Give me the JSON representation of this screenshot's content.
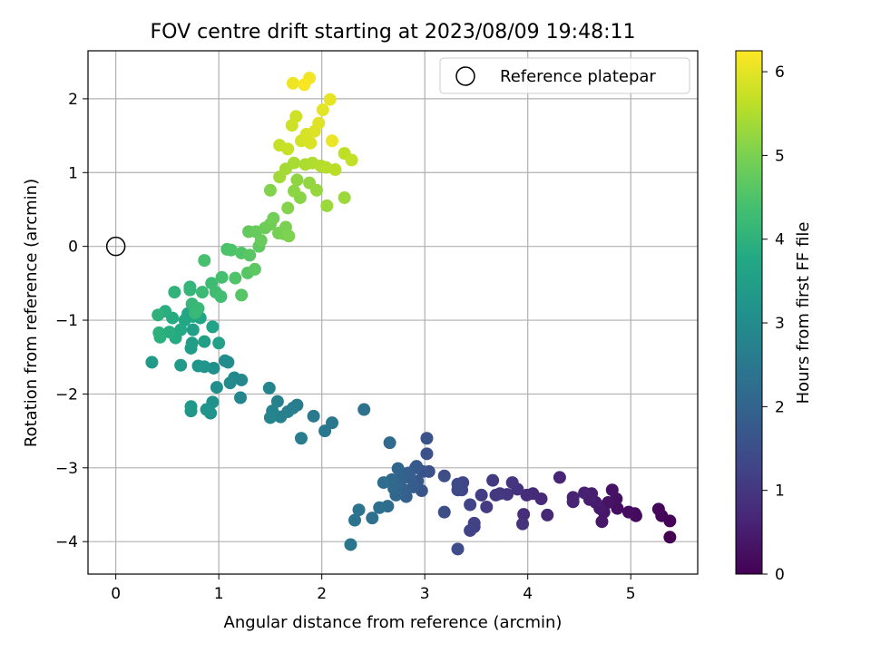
{
  "chart_data": {
    "type": "scatter",
    "title": "FOV centre drift starting at 2023/08/09 19:48:11",
    "xlabel": "Angular distance from reference (arcmin)",
    "ylabel": "Rotation from reference (arcmin)",
    "xlim": [
      -0.27,
      5.65
    ],
    "ylim": [
      -4.44,
      2.65
    ],
    "x_ticks": [
      "0",
      "1",
      "2",
      "3",
      "4",
      "5"
    ],
    "y_ticks": [
      "2",
      "1",
      "0",
      "−1",
      "−2",
      "−3",
      "−4"
    ],
    "grid": true,
    "legend": {
      "placement": "top-right",
      "entries": [
        "Reference platepar"
      ]
    },
    "colorbar": {
      "label": "Hours from first FF file",
      "range": [
        0,
        6.25
      ],
      "ticks": [
        "0",
        "1",
        "2",
        "3",
        "4",
        "5",
        "6"
      ],
      "colormap": "viridis"
    },
    "reference_point": {
      "x": 0,
      "y": 0,
      "name": "Reference platepar"
    },
    "series": [
      {
        "color_by": "hours",
        "points": [
          [
            5.38,
            -3.94,
            0.0
          ],
          [
            5.38,
            -3.72,
            0.03
          ],
          [
            5.3,
            -3.65,
            0.07
          ],
          [
            5.27,
            -3.56,
            0.1
          ],
          [
            5.05,
            -3.65,
            0.13
          ],
          [
            5.04,
            -3.62,
            0.17
          ],
          [
            4.98,
            -3.6,
            0.2
          ],
          [
            4.87,
            -3.55,
            0.24
          ],
          [
            4.86,
            -3.42,
            0.27
          ],
          [
            4.82,
            -3.3,
            0.3
          ],
          [
            4.78,
            -3.47,
            0.33
          ],
          [
            4.74,
            -3.6,
            0.37
          ],
          [
            4.72,
            -3.73,
            0.4
          ],
          [
            4.7,
            -3.55,
            0.43
          ],
          [
            4.66,
            -3.47,
            0.47
          ],
          [
            4.62,
            -3.35,
            0.5
          ],
          [
            4.6,
            -3.43,
            0.54
          ],
          [
            4.55,
            -3.34,
            0.57
          ],
          [
            4.44,
            -3.4,
            0.6
          ],
          [
            4.44,
            -3.46,
            0.63
          ],
          [
            4.31,
            -3.13,
            0.67
          ],
          [
            4.19,
            -3.64,
            0.7
          ],
          [
            4.13,
            -3.42,
            0.73
          ],
          [
            4.05,
            -3.35,
            0.77
          ],
          [
            3.99,
            -3.37,
            0.8
          ],
          [
            3.96,
            -3.63,
            0.83
          ],
          [
            3.95,
            -3.76,
            0.87
          ],
          [
            3.9,
            -3.29,
            0.9
          ],
          [
            3.85,
            -3.2,
            0.93
          ],
          [
            3.8,
            -3.36,
            0.97
          ],
          [
            3.73,
            -3.35,
            1.0
          ],
          [
            3.69,
            -3.37,
            1.03
          ],
          [
            3.66,
            -3.17,
            1.07
          ],
          [
            3.6,
            -3.53,
            1.1
          ],
          [
            3.55,
            -3.37,
            1.13
          ],
          [
            3.48,
            -3.8,
            1.17
          ],
          [
            3.48,
            -3.75,
            1.2
          ],
          [
            3.44,
            -3.85,
            1.23
          ],
          [
            3.44,
            -3.5,
            1.27
          ],
          [
            3.37,
            -3.2,
            1.3
          ],
          [
            3.36,
            -3.3,
            1.33
          ],
          [
            3.32,
            -3.3,
            1.37
          ],
          [
            3.32,
            -3.22,
            1.4
          ],
          [
            3.32,
            -4.1,
            1.43
          ],
          [
            3.19,
            -3.11,
            1.47
          ],
          [
            3.19,
            -3.6,
            1.5
          ],
          [
            3.04,
            -3.05,
            1.53
          ],
          [
            3.02,
            -2.81,
            1.57
          ],
          [
            3.02,
            -2.6,
            1.6
          ],
          [
            2.98,
            -3.05,
            1.63
          ],
          [
            2.97,
            -3.31,
            1.67
          ],
          [
            2.93,
            -3.18,
            1.7
          ],
          [
            2.92,
            -2.98,
            1.73
          ],
          [
            2.91,
            -3.0,
            1.77
          ],
          [
            2.89,
            -3.26,
            1.8
          ],
          [
            2.86,
            -3.14,
            1.83
          ],
          [
            2.84,
            -3.07,
            1.87
          ],
          [
            2.82,
            -3.39,
            1.9
          ],
          [
            2.8,
            -3.3,
            1.93
          ],
          [
            2.77,
            -3.12,
            1.97
          ],
          [
            2.76,
            -3.23,
            2.0
          ],
          [
            2.74,
            -3.01,
            2.03
          ],
          [
            2.72,
            -3.37,
            2.07
          ],
          [
            2.7,
            -3.28,
            2.1
          ],
          [
            2.68,
            -3.16,
            2.13
          ],
          [
            2.66,
            -2.66,
            2.17
          ],
          [
            2.64,
            -3.52,
            2.2
          ],
          [
            2.6,
            -3.2,
            2.23
          ],
          [
            2.56,
            -3.54,
            2.27
          ],
          [
            2.49,
            -3.68,
            2.3
          ],
          [
            2.41,
            -2.21,
            2.33
          ],
          [
            2.36,
            -3.57,
            2.37
          ],
          [
            2.32,
            -3.71,
            2.4
          ],
          [
            2.28,
            -4.04,
            2.43
          ],
          [
            2.1,
            -2.39,
            2.47
          ],
          [
            2.03,
            -2.5,
            2.5
          ],
          [
            1.92,
            -2.3,
            2.53
          ],
          [
            1.8,
            -2.6,
            2.57
          ],
          [
            1.76,
            -2.15,
            2.6
          ],
          [
            1.72,
            -2.19,
            2.63
          ],
          [
            1.67,
            -2.24,
            2.67
          ],
          [
            1.6,
            -2.31,
            2.7
          ],
          [
            1.57,
            -2.1,
            2.73
          ],
          [
            1.52,
            -2.23,
            2.77
          ],
          [
            1.5,
            -2.32,
            2.8
          ],
          [
            1.49,
            -1.92,
            2.83
          ],
          [
            1.21,
            -2.05,
            2.87
          ],
          [
            1.22,
            -1.81,
            2.9
          ],
          [
            1.15,
            -1.78,
            2.93
          ],
          [
            1.11,
            -1.85,
            2.97
          ],
          [
            1.09,
            -1.57,
            3.0
          ],
          [
            1.06,
            -1.55,
            3.03
          ],
          [
            0.98,
            -1.91,
            3.07
          ],
          [
            0.95,
            -1.65,
            3.1
          ],
          [
            0.94,
            -2.11,
            3.13
          ],
          [
            0.92,
            -2.26,
            3.17
          ],
          [
            0.88,
            -2.21,
            3.2
          ],
          [
            0.86,
            -1.63,
            3.23
          ],
          [
            0.8,
            -1.62,
            3.27
          ],
          [
            0.73,
            -2.23,
            3.3
          ],
          [
            0.73,
            -2.17,
            3.33
          ],
          [
            0.63,
            -1.61,
            3.37
          ],
          [
            0.35,
            -1.57,
            3.4
          ],
          [
            0.73,
            -1.38,
            3.43
          ],
          [
            0.74,
            -1.31,
            3.47
          ],
          [
            0.75,
            -1.13,
            3.5
          ],
          [
            0.86,
            -1.29,
            3.53
          ],
          [
            1.0,
            -1.31,
            3.57
          ],
          [
            0.94,
            -1.09,
            3.6
          ],
          [
            0.82,
            -0.97,
            3.63
          ],
          [
            0.75,
            -0.95,
            3.67
          ],
          [
            0.7,
            -0.91,
            3.7
          ],
          [
            0.67,
            -1.0,
            3.73
          ],
          [
            0.63,
            -1.13,
            3.77
          ],
          [
            0.58,
            -1.24,
            3.8
          ],
          [
            0.55,
            -0.97,
            3.83
          ],
          [
            0.52,
            -1.16,
            3.87
          ],
          [
            0.48,
            -0.88,
            3.9
          ],
          [
            0.43,
            -1.23,
            3.93
          ],
          [
            0.42,
            -1.17,
            3.97
          ],
          [
            0.41,
            -0.93,
            4.0
          ],
          [
            0.57,
            -0.62,
            4.03
          ],
          [
            0.72,
            -0.55,
            4.07
          ],
          [
            0.72,
            -0.59,
            4.1
          ],
          [
            0.74,
            -0.78,
            4.13
          ],
          [
            0.77,
            -0.9,
            4.17
          ],
          [
            0.8,
            -0.84,
            4.2
          ],
          [
            0.84,
            -0.62,
            4.23
          ],
          [
            0.93,
            -0.5,
            4.27
          ],
          [
            0.97,
            -0.62,
            4.3
          ],
          [
            1.02,
            -0.68,
            4.33
          ],
          [
            1.03,
            -0.42,
            4.37
          ],
          [
            0.86,
            -0.19,
            4.4
          ],
          [
            1.08,
            -0.04,
            4.43
          ],
          [
            1.12,
            -0.05,
            4.47
          ],
          [
            1.16,
            -0.43,
            4.5
          ],
          [
            1.22,
            -0.09,
            4.53
          ],
          [
            1.22,
            -0.66,
            4.57
          ],
          [
            1.28,
            -0.36,
            4.6
          ],
          [
            1.3,
            -0.12,
            4.63
          ],
          [
            1.35,
            -0.31,
            4.67
          ],
          [
            1.39,
            -0.0,
            4.7
          ],
          [
            1.29,
            0.2,
            4.73
          ],
          [
            1.36,
            0.2,
            4.77
          ],
          [
            1.41,
            0.08,
            4.8
          ],
          [
            1.45,
            0.25,
            4.83
          ],
          [
            1.5,
            0.3,
            4.87
          ],
          [
            1.53,
            0.38,
            4.9
          ],
          [
            1.58,
            0.18,
            4.93
          ],
          [
            1.63,
            0.17,
            4.97
          ],
          [
            1.65,
            0.26,
            5.0
          ],
          [
            1.68,
            0.14,
            5.03
          ],
          [
            1.5,
            0.76,
            5.07
          ],
          [
            1.67,
            0.52,
            5.1
          ],
          [
            1.79,
            0.66,
            5.13
          ],
          [
            1.73,
            0.75,
            5.17
          ],
          [
            1.76,
            0.9,
            5.2
          ],
          [
            1.88,
            0.86,
            5.23
          ],
          [
            1.95,
            0.76,
            5.27
          ],
          [
            2.05,
            0.55,
            5.3
          ],
          [
            2.22,
            0.66,
            5.33
          ],
          [
            1.59,
            0.94,
            5.37
          ],
          [
            1.65,
            1.05,
            5.4
          ],
          [
            1.73,
            1.13,
            5.43
          ],
          [
            1.84,
            1.11,
            5.47
          ],
          [
            1.91,
            1.13,
            5.5
          ],
          [
            1.99,
            1.09,
            5.53
          ],
          [
            2.04,
            1.07,
            5.57
          ],
          [
            2.13,
            1.04,
            5.6
          ],
          [
            2.22,
            1.26,
            5.63
          ],
          [
            2.29,
            1.17,
            5.67
          ],
          [
            1.59,
            1.37,
            5.7
          ],
          [
            1.67,
            1.32,
            5.73
          ],
          [
            1.71,
            1.64,
            5.77
          ],
          [
            1.75,
            1.76,
            5.8
          ],
          [
            1.8,
            1.43,
            5.83
          ],
          [
            1.85,
            1.52,
            5.87
          ],
          [
            1.89,
            1.4,
            5.9
          ],
          [
            1.93,
            1.56,
            5.93
          ],
          [
            1.97,
            1.67,
            5.97
          ],
          [
            2.01,
            1.85,
            6.0
          ],
          [
            2.08,
            1.99,
            6.03
          ],
          [
            2.1,
            1.43,
            6.07
          ],
          [
            1.72,
            2.21,
            6.1
          ],
          [
            1.88,
            2.28,
            6.13
          ],
          [
            1.83,
            2.19,
            6.2
          ]
        ]
      }
    ]
  }
}
